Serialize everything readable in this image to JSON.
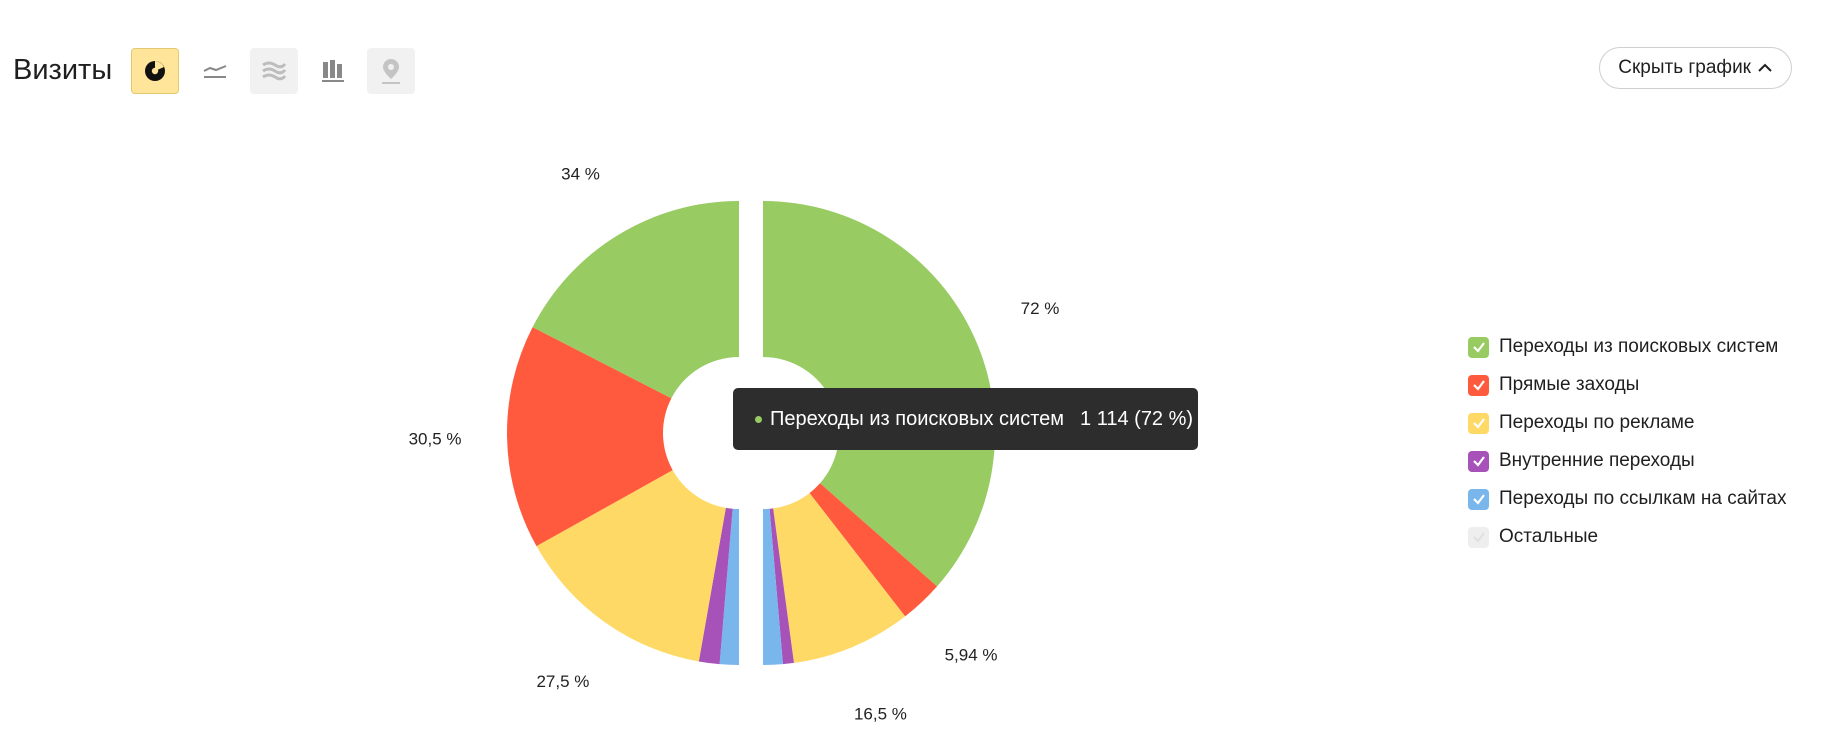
{
  "header": {
    "title": "Визиты",
    "hide_button_label": "Скрыть график",
    "view_modes": [
      {
        "name": "pie-view-button",
        "icon": "pie-chart-icon",
        "active": true
      },
      {
        "name": "line-view-button",
        "icon": "line-chart-icon",
        "active": false
      },
      {
        "name": "area-view-button",
        "icon": "area-chart-icon",
        "active": false
      },
      {
        "name": "bar-view-button",
        "icon": "bar-chart-icon",
        "active": false
      },
      {
        "name": "map-view-button",
        "icon": "map-pin-icon",
        "active": false
      }
    ]
  },
  "tooltip": {
    "label": "Переходы из поисковых систем",
    "value": "1 114 (72 %)"
  },
  "legend": [
    {
      "label": "Переходы из поисковых систем",
      "color": "#98cb62",
      "checked": true
    },
    {
      "label": "Прямые заходы",
      "color": "#ff5a3d",
      "checked": true
    },
    {
      "label": "Переходы по рекламе",
      "color": "#ffd966",
      "checked": true
    },
    {
      "label": "Внутренние переходы",
      "color": "#a752b8",
      "checked": true
    },
    {
      "label": "Переходы по ссылкам на сайтах",
      "color": "#78b6ec",
      "checked": true
    },
    {
      "label": "Остальные",
      "color": "#eeeeee",
      "checked": false
    }
  ],
  "chart_data": {
    "type": "pie",
    "title": "",
    "halves": [
      {
        "values": [
          72,
          5.94,
          16.5,
          1.5,
          2.7
        ],
        "labels": [
          "72 %",
          "5,94 %",
          "16,5 %",
          "",
          ""
        ]
      },
      {
        "values": [
          2.6,
          2.8,
          27.5,
          30.5,
          34
        ],
        "labels": [
          "",
          "",
          "27,5 %",
          "30,5 %",
          "34 %"
        ]
      }
    ],
    "series_order": [
      "Переходы из поисковых систем",
      "Прямые заходы",
      "Переходы по рекламе",
      "Внутренние переходы",
      "Переходы по ссылкам на сайтах"
    ],
    "colors": [
      "#98cb62",
      "#ff5a3d",
      "#ffd966",
      "#a752b8",
      "#78b6ec"
    ]
  }
}
